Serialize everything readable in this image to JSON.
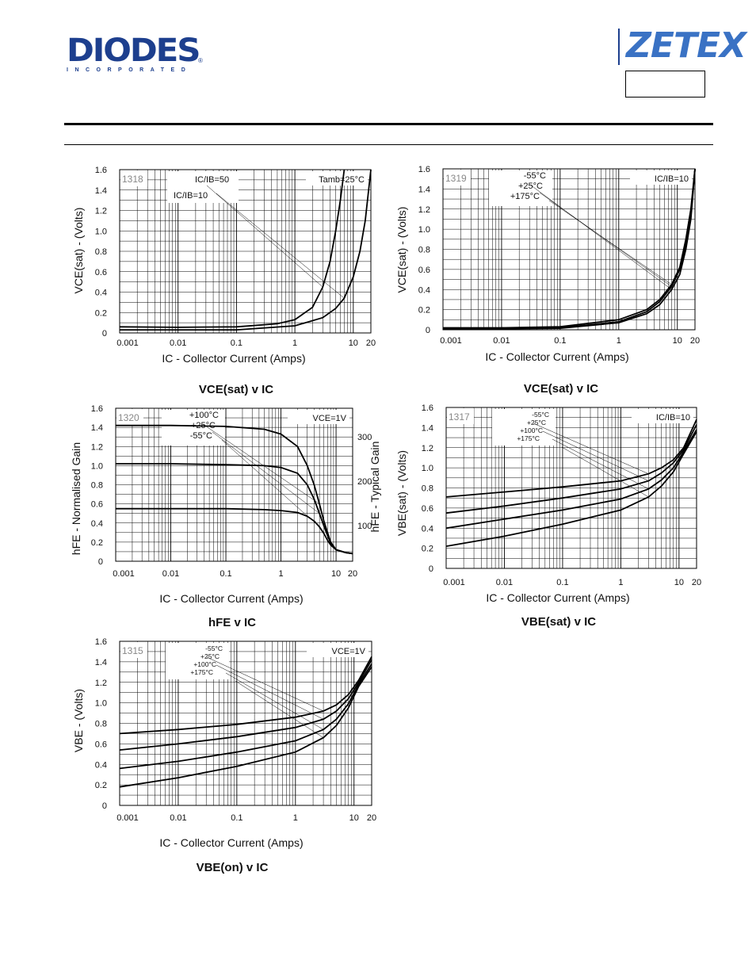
{
  "header": {
    "diodes_logo_text": "DIODES",
    "diodes_logo_sub": "INCORPORATED",
    "zetex_logo_text": "ZETEX"
  },
  "colors": {
    "brand_blue": "#1d3f8e",
    "zetex_blue": "#3a72c4",
    "curve": "#000000",
    "grid": "#000000"
  },
  "x_ticks": [
    "0.001",
    "0.01",
    "0.1",
    "1",
    "10",
    "20"
  ],
  "chart_data": [
    {
      "id": "1318",
      "type": "line",
      "title": "VCE(sat) v IC",
      "xlabel": "IC - Collector Current (Amps)",
      "ylabel": "VCE(sat) - (Volts)",
      "xscale": "log",
      "xlim": [
        0.001,
        20
      ],
      "ylim": [
        0,
        1.6
      ],
      "yticks": [
        "0",
        "0.2",
        "0.4",
        "0.6",
        "0.8",
        "1.0",
        "1.2",
        "1.4",
        "1.6"
      ],
      "annotations": [
        "IC/IB=50",
        "IC/IB=10",
        "Tamb=25°C"
      ],
      "series": [
        {
          "label": "IC/IB=50",
          "x": [
            0.001,
            0.01,
            0.1,
            0.5,
            1,
            2,
            3,
            4,
            5,
            6,
            7
          ],
          "y": [
            0.06,
            0.055,
            0.06,
            0.09,
            0.13,
            0.25,
            0.45,
            0.7,
            1.0,
            1.3,
            1.6
          ]
        },
        {
          "label": "IC/IB=10",
          "x": [
            0.001,
            0.01,
            0.1,
            1,
            3,
            5,
            7,
            10,
            13,
            16,
            20
          ],
          "y": [
            0.03,
            0.03,
            0.03,
            0.07,
            0.15,
            0.24,
            0.34,
            0.55,
            0.8,
            1.1,
            1.6
          ]
        }
      ]
    },
    {
      "id": "1319",
      "type": "line",
      "title": "VCE(sat) v IC",
      "xlabel": "IC - Collector Current (Amps)",
      "ylabel": "VCE(sat) - (Volts)",
      "xscale": "log",
      "xlim": [
        0.001,
        20
      ],
      "ylim": [
        0,
        1.6
      ],
      "yticks": [
        "0",
        "0.2",
        "0.4",
        "0.6",
        "0.8",
        "1.0",
        "1.2",
        "1.4",
        "1.6"
      ],
      "annotations": [
        "IC/IB=10"
      ],
      "legend_labels": [
        "-55°C",
        "+25°C",
        "+175°C"
      ],
      "series": [
        {
          "label": "-55°C",
          "x": [
            0.001,
            0.01,
            0.1,
            1,
            3,
            5,
            8,
            11,
            14,
            17,
            20
          ],
          "y": [
            0.01,
            0.01,
            0.015,
            0.07,
            0.16,
            0.25,
            0.4,
            0.55,
            0.8,
            1.1,
            1.6
          ]
        },
        {
          "label": "+25°C",
          "x": [
            0.001,
            0.01,
            0.1,
            1,
            3,
            5,
            8,
            11,
            14,
            17,
            20
          ],
          "y": [
            0.015,
            0.015,
            0.02,
            0.08,
            0.18,
            0.28,
            0.43,
            0.6,
            0.85,
            1.15,
            1.6
          ]
        },
        {
          "label": "+175°C",
          "x": [
            0.001,
            0.01,
            0.1,
            1,
            3,
            5,
            8,
            11,
            14,
            17,
            20
          ],
          "y": [
            0.02,
            0.02,
            0.03,
            0.1,
            0.2,
            0.3,
            0.45,
            0.62,
            0.9,
            1.2,
            1.6
          ]
        }
      ]
    },
    {
      "id": "1320",
      "type": "line",
      "title": "hFE v IC",
      "xlabel": "IC - Collector Current (Amps)",
      "ylabel": "hFE - Normalised Gain",
      "y2label": "hFE - Typical Gain",
      "xscale": "log",
      "xlim": [
        0.001,
        20
      ],
      "ylim": [
        0,
        1.6
      ],
      "yticks": [
        "0",
        "0.2",
        "0.4",
        "0.6",
        "0.8",
        "1.0",
        "1.2",
        "1.4",
        "1.6"
      ],
      "y2ticks": [
        "100",
        "200",
        "300"
      ],
      "annotations": [
        "VCE=1V"
      ],
      "legend_labels": [
        "+100°C",
        "+25°C",
        "-55°C"
      ],
      "series": [
        {
          "label": "+100°C",
          "x": [
            0.001,
            0.01,
            0.1,
            0.5,
            1,
            2,
            3,
            4,
            5,
            6,
            7,
            8,
            10,
            15,
            20
          ],
          "y": [
            1.42,
            1.42,
            1.41,
            1.38,
            1.33,
            1.2,
            1.0,
            0.8,
            0.6,
            0.42,
            0.3,
            0.2,
            0.12,
            0.09,
            0.08
          ]
        },
        {
          "label": "+25°C",
          "x": [
            0.001,
            0.01,
            0.1,
            0.5,
            1,
            2,
            3,
            4,
            5,
            6,
            7,
            8,
            10,
            15,
            20
          ],
          "y": [
            1.02,
            1.02,
            1.01,
            1.0,
            0.98,
            0.92,
            0.8,
            0.65,
            0.5,
            0.37,
            0.27,
            0.19,
            0.12,
            0.09,
            0.08
          ]
        },
        {
          "label": "-55°C",
          "x": [
            0.001,
            0.01,
            0.1,
            0.5,
            1,
            2,
            3,
            4,
            5,
            6,
            7,
            8,
            10,
            15,
            20
          ],
          "y": [
            0.55,
            0.55,
            0.55,
            0.54,
            0.53,
            0.51,
            0.47,
            0.42,
            0.36,
            0.29,
            0.22,
            0.17,
            0.12,
            0.09,
            0.08
          ]
        }
      ]
    },
    {
      "id": "1317",
      "type": "line",
      "title": "VBE(sat) v IC",
      "xlabel": "IC - Collector Current (Amps)",
      "ylabel": "VBE(sat) - (Volts)",
      "xscale": "log",
      "xlim": [
        0.001,
        20
      ],
      "ylim": [
        0,
        1.6
      ],
      "yticks": [
        "0",
        "0.2",
        "0.4",
        "0.6",
        "0.8",
        "1.0",
        "1.2",
        "1.4",
        "1.6"
      ],
      "annotations": [
        "IC/IB=10"
      ],
      "legend_labels": [
        "-55°C",
        "+25°C",
        "+100°C",
        "+175°C"
      ],
      "series": [
        {
          "label": "-55°C",
          "x": [
            0.001,
            0.01,
            0.1,
            1,
            3,
            5,
            8,
            12,
            20
          ],
          "y": [
            0.71,
            0.76,
            0.81,
            0.87,
            0.94,
            1.0,
            1.08,
            1.2,
            1.48
          ]
        },
        {
          "label": "+25°C",
          "x": [
            0.001,
            0.01,
            0.1,
            1,
            3,
            5,
            8,
            12,
            20
          ],
          "y": [
            0.55,
            0.62,
            0.7,
            0.79,
            0.87,
            0.95,
            1.05,
            1.18,
            1.43
          ]
        },
        {
          "label": "+100°C",
          "x": [
            0.001,
            0.01,
            0.1,
            1,
            3,
            5,
            8,
            12,
            20
          ],
          "y": [
            0.4,
            0.49,
            0.58,
            0.69,
            0.79,
            0.88,
            1.0,
            1.16,
            1.38
          ]
        },
        {
          "label": "+175°C",
          "x": [
            0.001,
            0.01,
            0.1,
            1,
            3,
            5,
            8,
            12,
            20
          ],
          "y": [
            0.22,
            0.32,
            0.44,
            0.58,
            0.71,
            0.82,
            0.96,
            1.14,
            1.36
          ]
        }
      ]
    },
    {
      "id": "1315",
      "type": "line",
      "title": "VBE(on) v IC",
      "xlabel": "IC - Collector Current (Amps)",
      "ylabel": "VBE - (Volts)",
      "xscale": "log",
      "xlim": [
        0.001,
        20
      ],
      "ylim": [
        0,
        1.6
      ],
      "yticks": [
        "0",
        "0.2",
        "0.4",
        "0.6",
        "0.8",
        "1.0",
        "1.2",
        "1.4",
        "1.6"
      ],
      "annotations": [
        "VCE=1V"
      ],
      "legend_labels": [
        "-55°C",
        "+25°C",
        "+100°C",
        "+175°C"
      ],
      "series": [
        {
          "label": "-55°C",
          "x": [
            0.001,
            0.01,
            0.1,
            1,
            3,
            5,
            8,
            12,
            20
          ],
          "y": [
            0.7,
            0.74,
            0.79,
            0.86,
            0.92,
            0.98,
            1.08,
            1.22,
            1.45
          ]
        },
        {
          "label": "+25°C",
          "x": [
            0.001,
            0.01,
            0.1,
            1,
            3,
            5,
            8,
            12,
            20
          ],
          "y": [
            0.54,
            0.6,
            0.67,
            0.76,
            0.84,
            0.92,
            1.04,
            1.2,
            1.42
          ]
        },
        {
          "label": "+100°C",
          "x": [
            0.001,
            0.01,
            0.1,
            1,
            3,
            5,
            8,
            12,
            20
          ],
          "y": [
            0.36,
            0.43,
            0.52,
            0.63,
            0.74,
            0.84,
            0.99,
            1.18,
            1.38
          ]
        },
        {
          "label": "+175°C",
          "x": [
            0.001,
            0.01,
            0.1,
            1,
            3,
            5,
            8,
            12,
            20
          ],
          "y": [
            0.18,
            0.27,
            0.38,
            0.52,
            0.66,
            0.78,
            0.95,
            1.16,
            1.35
          ]
        }
      ]
    }
  ]
}
